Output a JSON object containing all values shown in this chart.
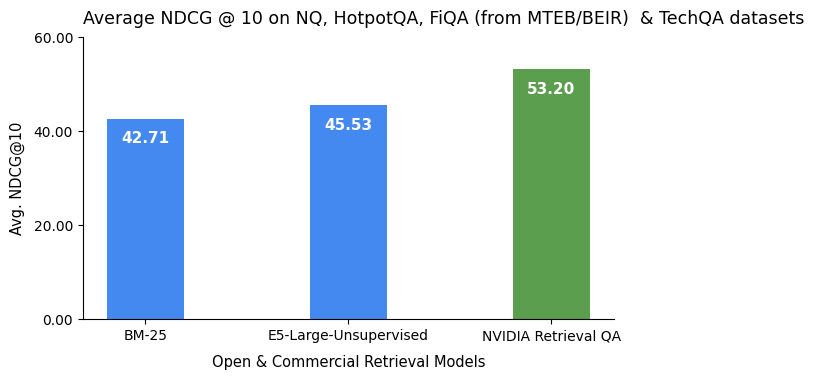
{
  "categories": [
    "BM-25",
    "E5-Large-Unsupervised",
    "NVIDIA Retrieval QA"
  ],
  "values": [
    42.71,
    45.53,
    53.2
  ],
  "bar_colors": [
    "#4489F0",
    "#4489F0",
    "#5B9E4D"
  ],
  "title": "Average NDCG @ 10 on NQ, HotpotQA, FiQA (from MTEB/BEIR)  & TechQA datasets",
  "xlabel": "Open & Commercial Retrieval Models",
  "ylabel": "Avg. NDCG@10",
  "ylim": [
    0,
    60
  ],
  "yticks": [
    0.0,
    20.0,
    40.0,
    60.0
  ],
  "ytick_labels": [
    "0.00",
    "20.00",
    "40.00",
    "60.00"
  ],
  "bar_labels": [
    "42.71",
    "45.53",
    "53.20"
  ],
  "label_color": "#ffffff",
  "background_color": "#ffffff",
  "title_fontsize": 12.5,
  "axis_label_fontsize": 10.5,
  "tick_fontsize": 10,
  "bar_label_fontsize": 11
}
